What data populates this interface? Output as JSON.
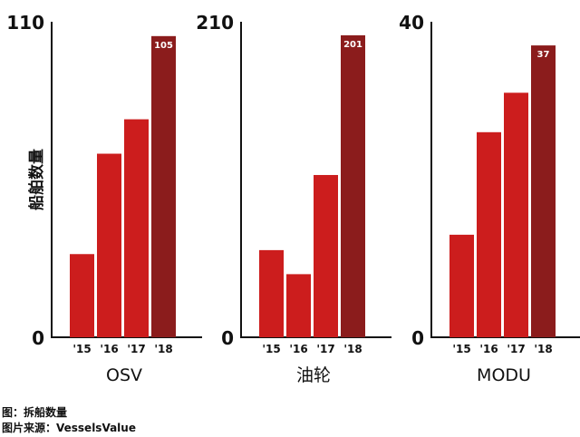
{
  "chart_data": {
    "type": "bar",
    "ylabel": "船舶数量",
    "colors": {
      "bar": "#cc1d1d",
      "highlight": "#8b1c1c",
      "axis": "#111111"
    },
    "panels": [
      {
        "title": "OSV",
        "ylim": [
          0,
          110
        ],
        "y_ticks": [
          "0",
          "110"
        ],
        "categories": [
          "'15",
          "'16",
          "'17",
          "'18"
        ],
        "values": [
          29,
          64,
          76,
          105
        ],
        "data_labels": [
          "",
          "",
          "",
          "105"
        ]
      },
      {
        "title": "油轮",
        "ylim": [
          0,
          210
        ],
        "y_ticks": [
          "0",
          "210"
        ],
        "categories": [
          "'15",
          "'16",
          "'17",
          "'18"
        ],
        "values": [
          58,
          42,
          108,
          201
        ],
        "data_labels": [
          "",
          "",
          "",
          "201"
        ]
      },
      {
        "title": "MODU",
        "ylim": [
          0,
          40
        ],
        "y_ticks": [
          "0",
          "40"
        ],
        "categories": [
          "'15",
          "'16",
          "'17",
          "'18"
        ],
        "values": [
          13,
          26,
          31,
          37
        ],
        "data_labels": [
          "",
          "",
          "",
          "37"
        ]
      }
    ]
  },
  "captions": {
    "figure": "图：拆船数量",
    "source": "图片来源：VesselsValue"
  }
}
